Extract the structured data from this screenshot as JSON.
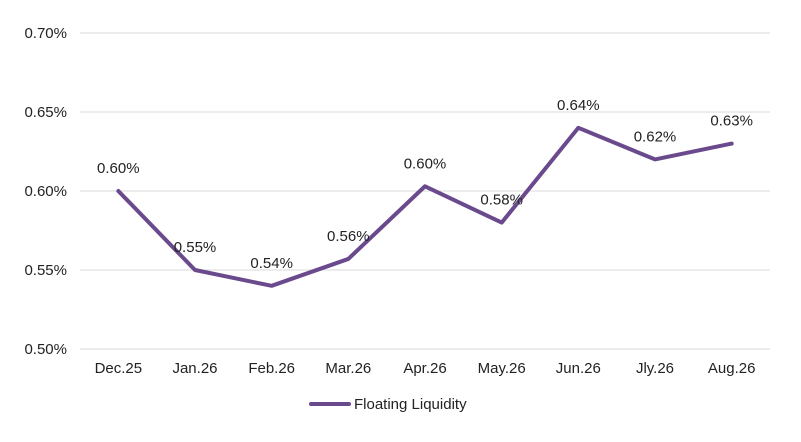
{
  "chart_data": {
    "type": "line",
    "title": "",
    "xlabel": "",
    "ylabel": "",
    "categories": [
      "Dec.25",
      "Jan.26",
      "Feb.26",
      "Mar.26",
      "Apr.26",
      "May.26",
      "Jun.26",
      "Jly.26",
      "Aug.26"
    ],
    "series": [
      {
        "name": "Floating Liquidity",
        "values": [
          0.6,
          0.55,
          0.54,
          0.557,
          0.603,
          0.58,
          0.64,
          0.62,
          0.63
        ],
        "data_labels": [
          "0.60%",
          "0.55%",
          "0.54%",
          "0.56%",
          "0.60%",
          "0.58%",
          "0.64%",
          "0.62%",
          "0.63%"
        ],
        "color": "#6a4a8c"
      }
    ],
    "ylim": [
      0.5,
      0.7
    ],
    "yticks": [
      0.5,
      0.55,
      0.6,
      0.65,
      0.7
    ],
    "ytick_labels": [
      "0.50%",
      "0.55%",
      "0.60%",
      "0.65%",
      "0.70%"
    ],
    "grid": true,
    "legend_position": "bottom"
  }
}
